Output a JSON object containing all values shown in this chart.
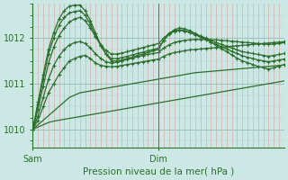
{
  "background_color": "#cce8e4",
  "line_color": "#2d6e2d",
  "title": "Pression niveau de la mer( hPa )",
  "xlabel_sam": "Sam",
  "xlabel_dim": "Dim",
  "ylim": [
    1009.6,
    1012.75
  ],
  "yticks": [
    1010,
    1011,
    1012
  ],
  "xlim": [
    0,
    48
  ],
  "sam_x": 0,
  "dim_x": 24,
  "vline_x": 24,
  "vline_color": "#666666",
  "tick_label_color": "#2d6e2d",
  "axis_color": "#2d6e2d",
  "minor_grid_color_v": "#d8a0a0",
  "minor_grid_color_h": "#b8d4d0",
  "major_grid_color": "#9ec0bc",
  "series": [
    {
      "x": [
        0,
        1,
        2,
        3,
        4,
        5,
        6,
        7,
        8,
        9,
        10,
        11,
        12,
        13,
        14,
        15,
        16,
        17,
        18,
        19,
        20,
        21,
        22,
        23,
        24,
        25,
        26,
        27,
        28,
        29,
        30,
        31,
        32,
        33,
        34,
        35,
        36,
        37,
        38,
        39,
        40,
        41,
        42,
        43,
        44,
        45,
        46,
        47,
        48
      ],
      "y": [
        1010.0,
        1010.05,
        1010.1,
        1010.15,
        1010.18,
        1010.2,
        1010.22,
        1010.24,
        1010.26,
        1010.28,
        1010.3,
        1010.32,
        1010.34,
        1010.36,
        1010.38,
        1010.4,
        1010.42,
        1010.44,
        1010.46,
        1010.48,
        1010.5,
        1010.52,
        1010.54,
        1010.56,
        1010.58,
        1010.6,
        1010.62,
        1010.64,
        1010.66,
        1010.68,
        1010.7,
        1010.72,
        1010.74,
        1010.76,
        1010.78,
        1010.8,
        1010.82,
        1010.84,
        1010.86,
        1010.88,
        1010.9,
        1010.92,
        1010.94,
        1010.96,
        1010.98,
        1011.0,
        1011.02,
        1011.04,
        1011.06
      ],
      "show_markers": false
    },
    {
      "x": [
        0,
        1,
        2,
        3,
        4,
        5,
        6,
        7,
        8,
        9,
        10,
        11,
        12,
        13,
        14,
        15,
        16,
        17,
        18,
        19,
        20,
        21,
        22,
        23,
        24,
        25,
        26,
        27,
        28,
        29,
        30,
        31,
        32,
        33,
        34,
        35,
        36,
        37,
        38,
        39,
        40,
        41,
        42,
        43,
        44,
        45,
        46,
        47,
        48
      ],
      "y": [
        1010.0,
        1010.1,
        1010.2,
        1010.3,
        1010.4,
        1010.5,
        1010.6,
        1010.7,
        1010.75,
        1010.8,
        1010.82,
        1010.84,
        1010.86,
        1010.88,
        1010.9,
        1010.92,
        1010.94,
        1010.96,
        1010.98,
        1011.0,
        1011.02,
        1011.04,
        1011.06,
        1011.08,
        1011.1,
        1011.12,
        1011.14,
        1011.16,
        1011.18,
        1011.2,
        1011.22,
        1011.24,
        1011.25,
        1011.26,
        1011.27,
        1011.28,
        1011.29,
        1011.3,
        1011.31,
        1011.32,
        1011.33,
        1011.34,
        1011.35,
        1011.36,
        1011.37,
        1011.38,
        1011.39,
        1011.4,
        1011.41
      ],
      "show_markers": false
    },
    {
      "x": [
        0,
        1,
        2,
        3,
        4,
        5,
        6,
        7,
        8,
        9,
        10,
        11,
        12,
        13,
        14,
        15,
        16,
        17,
        18,
        19,
        20,
        21,
        22,
        23,
        24,
        25,
        26,
        27,
        28,
        29,
        30,
        31,
        32,
        33,
        34,
        35,
        36,
        37,
        38,
        39,
        40,
        41,
        42,
        43,
        44,
        45,
        46,
        47,
        48
      ],
      "y": [
        1010.0,
        1010.2,
        1010.5,
        1010.8,
        1011.0,
        1011.2,
        1011.35,
        1011.5,
        1011.55,
        1011.6,
        1011.62,
        1011.55,
        1011.45,
        1011.4,
        1011.38,
        1011.37,
        1011.38,
        1011.4,
        1011.42,
        1011.44,
        1011.46,
        1011.48,
        1011.5,
        1011.52,
        1011.54,
        1011.6,
        1011.65,
        1011.68,
        1011.7,
        1011.72,
        1011.74,
        1011.75,
        1011.76,
        1011.77,
        1011.78,
        1011.79,
        1011.8,
        1011.81,
        1011.82,
        1011.83,
        1011.84,
        1011.85,
        1011.86,
        1011.87,
        1011.88,
        1011.89,
        1011.9,
        1011.91,
        1011.92
      ],
      "show_markers": true
    },
    {
      "x": [
        0,
        1,
        2,
        3,
        4,
        5,
        6,
        7,
        8,
        9,
        10,
        11,
        12,
        13,
        14,
        15,
        16,
        17,
        18,
        19,
        20,
        21,
        22,
        23,
        24,
        25,
        26,
        27,
        28,
        29,
        30,
        31,
        32,
        33,
        34,
        35,
        36,
        37,
        38,
        39,
        40,
        41,
        42,
        43,
        44,
        45,
        46,
        47,
        48
      ],
      "y": [
        1010.0,
        1010.3,
        1010.7,
        1011.1,
        1011.4,
        1011.6,
        1011.75,
        1011.85,
        1011.9,
        1011.92,
        1011.88,
        1011.78,
        1011.65,
        1011.55,
        1011.48,
        1011.45,
        1011.47,
        1011.5,
        1011.53,
        1011.56,
        1011.59,
        1011.62,
        1011.64,
        1011.66,
        1011.68,
        1011.78,
        1011.85,
        1011.9,
        1011.93,
        1011.95,
        1011.96,
        1011.97,
        1011.97,
        1011.97,
        1011.96,
        1011.96,
        1011.95,
        1011.94,
        1011.93,
        1011.92,
        1011.91,
        1011.9,
        1011.89,
        1011.88,
        1011.87,
        1011.86,
        1011.87,
        1011.88,
        1011.9
      ],
      "show_markers": true
    },
    {
      "x": [
        0,
        1,
        2,
        3,
        4,
        5,
        6,
        7,
        8,
        9,
        10,
        11,
        12,
        13,
        14,
        15,
        16,
        17,
        18,
        19,
        20,
        21,
        22,
        23,
        24,
        25,
        26,
        27,
        28,
        29,
        30,
        31,
        32,
        33,
        34,
        35,
        36,
        37,
        38,
        39,
        40,
        41,
        42,
        43,
        44,
        45,
        46,
        47,
        48
      ],
      "y": [
        1010.0,
        1010.45,
        1010.95,
        1011.45,
        1011.8,
        1012.05,
        1012.22,
        1012.35,
        1012.42,
        1012.45,
        1012.38,
        1012.22,
        1012.02,
        1011.85,
        1011.72,
        1011.65,
        1011.65,
        1011.67,
        1011.7,
        1011.73,
        1011.76,
        1011.79,
        1011.82,
        1011.85,
        1011.88,
        1012.0,
        1012.1,
        1012.15,
        1012.17,
        1012.15,
        1012.12,
        1012.08,
        1012.04,
        1012.0,
        1011.95,
        1011.9,
        1011.86,
        1011.82,
        1011.78,
        1011.74,
        1011.7,
        1011.68,
        1011.66,
        1011.64,
        1011.62,
        1011.6,
        1011.62,
        1011.64,
        1011.66
      ],
      "show_markers": true
    },
    {
      "x": [
        0,
        1,
        2,
        3,
        4,
        5,
        6,
        7,
        8,
        9,
        10,
        11,
        12,
        13,
        14,
        15,
        16,
        17,
        18,
        19,
        20,
        21,
        22,
        23,
        24,
        25,
        26,
        27,
        28,
        29,
        30,
        31,
        32,
        33,
        34,
        35,
        36,
        37,
        38,
        39,
        40,
        41,
        42,
        43,
        44,
        45,
        46,
        47,
        48
      ],
      "y": [
        1010.0,
        1010.55,
        1011.1,
        1011.65,
        1012.0,
        1012.28,
        1012.45,
        1012.55,
        1012.58,
        1012.6,
        1012.5,
        1012.3,
        1012.05,
        1011.82,
        1011.65,
        1011.55,
        1011.55,
        1011.57,
        1011.6,
        1011.63,
        1011.66,
        1011.69,
        1011.72,
        1011.75,
        1011.78,
        1011.95,
        1012.08,
        1012.15,
        1012.18,
        1012.16,
        1012.12,
        1012.07,
        1012.02,
        1011.97,
        1011.91,
        1011.86,
        1011.81,
        1011.76,
        1011.71,
        1011.66,
        1011.61,
        1011.58,
        1011.55,
        1011.52,
        1011.5,
        1011.48,
        1011.5,
        1011.52,
        1011.54
      ],
      "show_markers": true
    },
    {
      "x": [
        0,
        1,
        2,
        3,
        4,
        5,
        6,
        7,
        8,
        9,
        10,
        11,
        12,
        13,
        14,
        15,
        16,
        17,
        18,
        19,
        20,
        21,
        22,
        23,
        24,
        25,
        26,
        27,
        28,
        29,
        30,
        31,
        32,
        33,
        34,
        35,
        36,
        37,
        38,
        39,
        40,
        41,
        42,
        43,
        44,
        45,
        46,
        47,
        48
      ],
      "y": [
        1010.0,
        1010.6,
        1011.2,
        1011.75,
        1012.12,
        1012.42,
        1012.6,
        1012.7,
        1012.72,
        1012.72,
        1012.6,
        1012.38,
        1012.1,
        1011.84,
        1011.64,
        1011.5,
        1011.5,
        1011.52,
        1011.55,
        1011.58,
        1011.62,
        1011.65,
        1011.68,
        1011.72,
        1011.75,
        1011.95,
        1012.1,
        1012.18,
        1012.22,
        1012.2,
        1012.16,
        1012.1,
        1012.04,
        1011.98,
        1011.91,
        1011.84,
        1011.77,
        1011.7,
        1011.63,
        1011.56,
        1011.5,
        1011.46,
        1011.42,
        1011.38,
        1011.35,
        1011.32,
        1011.35,
        1011.38,
        1011.42
      ],
      "show_markers": true
    }
  ]
}
